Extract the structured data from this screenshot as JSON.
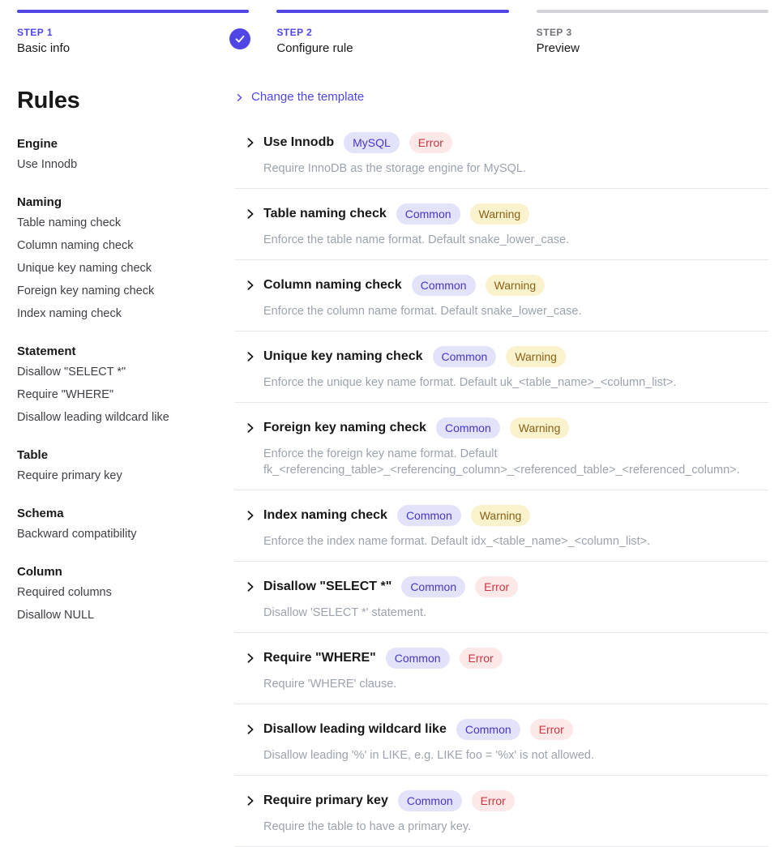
{
  "colors": {
    "accent": "#4f46e5",
    "accentDark": "#4338ca",
    "indigoBadgeBg": "#e3e2fb",
    "errorText": "#d0333f",
    "errorBg": "#fde8e8",
    "warningText": "#8a6116",
    "warningBg": "#faf2cd",
    "titleText": "#18181b",
    "descText": "#9ca3af",
    "sidebarItemText": "#3f3f46",
    "stepTodoBar": "#d4d4d8",
    "stepTodoLabel": "#71717a",
    "divider": "#e5e7eb"
  },
  "steps": [
    {
      "step_label": "STEP 1",
      "name": "Basic info",
      "state": "done",
      "icon": "check-icon"
    },
    {
      "step_label": "STEP 2",
      "name": "Configure rule",
      "state": "active"
    },
    {
      "step_label": "STEP 3",
      "name": "Preview",
      "state": "todo"
    }
  ],
  "sidebar": {
    "title": "Rules",
    "groups": [
      {
        "label": "Engine",
        "items": [
          "Use Innodb"
        ]
      },
      {
        "label": "Naming",
        "items": [
          "Table naming check",
          "Column naming check",
          "Unique key naming check",
          "Foreign key naming check",
          "Index naming check"
        ]
      },
      {
        "label": "Statement",
        "items": [
          "Disallow \"SELECT *\"",
          "Require \"WHERE\"",
          "Disallow leading wildcard like"
        ]
      },
      {
        "label": "Table",
        "items": [
          "Require primary key"
        ]
      },
      {
        "label": "Schema",
        "items": [
          "Backward compatibility"
        ]
      },
      {
        "label": "Column",
        "items": [
          "Required columns",
          "Disallow NULL"
        ]
      }
    ]
  },
  "main": {
    "change_template_label": "Change the template",
    "rules": [
      {
        "title": "Use Innodb",
        "badges": [
          {
            "label": "MySQL",
            "type": "category"
          },
          {
            "label": "Error",
            "type": "error"
          }
        ],
        "description": "Require InnoDB as the storage engine for MySQL."
      },
      {
        "title": "Table naming check",
        "badges": [
          {
            "label": "Common",
            "type": "category"
          },
          {
            "label": "Warning",
            "type": "warning"
          }
        ],
        "description": "Enforce the table name format. Default snake_lower_case."
      },
      {
        "title": "Column naming check",
        "badges": [
          {
            "label": "Common",
            "type": "category"
          },
          {
            "label": "Warning",
            "type": "warning"
          }
        ],
        "description": "Enforce the column name format. Default snake_lower_case."
      },
      {
        "title": "Unique key naming check",
        "badges": [
          {
            "label": "Common",
            "type": "category"
          },
          {
            "label": "Warning",
            "type": "warning"
          }
        ],
        "description": "Enforce the unique key name format. Default uk_<table_name>_<column_list>."
      },
      {
        "title": "Foreign key naming check",
        "badges": [
          {
            "label": "Common",
            "type": "category"
          },
          {
            "label": "Warning",
            "type": "warning"
          }
        ],
        "description": "Enforce the foreign key name format. Default fk_<referencing_table>_<referencing_column>_<referenced_table>_<referenced_column>."
      },
      {
        "title": "Index naming check",
        "badges": [
          {
            "label": "Common",
            "type": "category"
          },
          {
            "label": "Warning",
            "type": "warning"
          }
        ],
        "description": "Enforce the index name format. Default idx_<table_name>_<column_list>."
      },
      {
        "title": "Disallow \"SELECT *\"",
        "badges": [
          {
            "label": "Common",
            "type": "category"
          },
          {
            "label": "Error",
            "type": "error"
          }
        ],
        "description": "Disallow 'SELECT *' statement."
      },
      {
        "title": "Require \"WHERE\"",
        "badges": [
          {
            "label": "Common",
            "type": "category"
          },
          {
            "label": "Error",
            "type": "error"
          }
        ],
        "description": "Require 'WHERE' clause."
      },
      {
        "title": "Disallow leading wildcard like",
        "badges": [
          {
            "label": "Common",
            "type": "category"
          },
          {
            "label": "Error",
            "type": "error"
          }
        ],
        "description": "Disallow leading '%' in LIKE, e.g. LIKE foo = '%x' is not allowed."
      },
      {
        "title": "Require primary key",
        "badges": [
          {
            "label": "Common",
            "type": "category"
          },
          {
            "label": "Error",
            "type": "error"
          }
        ],
        "description": "Require the table to have a primary key."
      }
    ]
  }
}
